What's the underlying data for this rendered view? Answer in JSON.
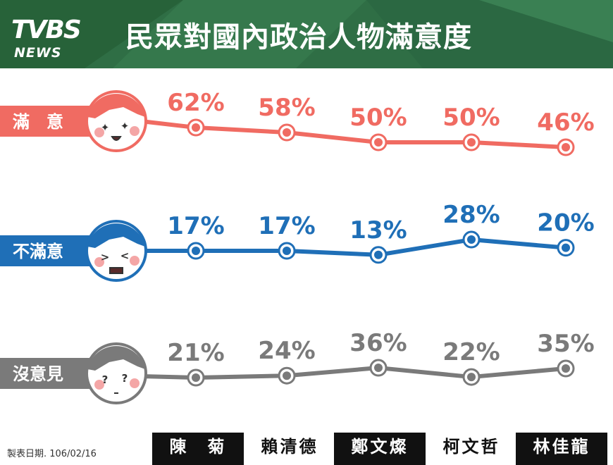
{
  "header": {
    "title": "民眾對國內政治人物滿意度",
    "logo_main": "TVBS",
    "logo_sub": "NEWS",
    "bg_color": "#2f6e45"
  },
  "footer": {
    "date_note": "製表日期. 106/02/16"
  },
  "chart_data": {
    "type": "line",
    "categories": [
      "陳　菊",
      "賴清德",
      "鄭文燦",
      "柯文哲",
      "林佳龍"
    ],
    "ylim": [
      0,
      100
    ],
    "series": [
      {
        "name": "滿　意",
        "values": [
          62,
          58,
          50,
          50,
          46
        ],
        "color": "#f06b62"
      },
      {
        "name": "不滿意",
        "values": [
          17,
          17,
          13,
          28,
          20
        ],
        "color": "#1f6fb7"
      },
      {
        "name": "沒意見",
        "values": [
          21,
          24,
          36,
          22,
          35
        ],
        "color": "#7a7a7a"
      }
    ],
    "value_suffix": "%",
    "legend": "left"
  }
}
